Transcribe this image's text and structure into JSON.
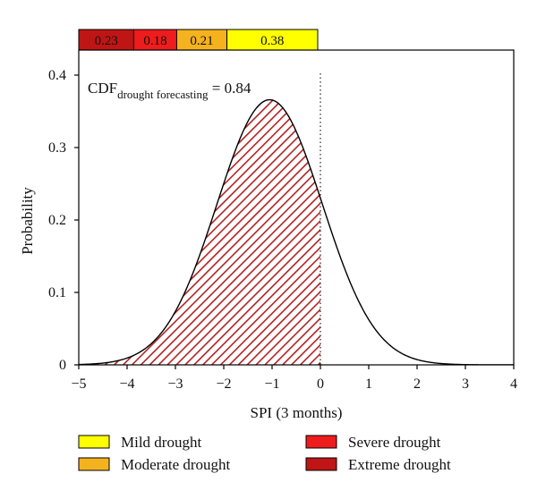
{
  "chart_data": {
    "type": "area",
    "xlabel": "SPI (3 months)",
    "ylabel": "Probability",
    "xlim": [
      -5,
      4
    ],
    "ylim": [
      0,
      0.4
    ],
    "xticks": [
      -5,
      -4,
      -3,
      -2,
      -1,
      0,
      1,
      2,
      3,
      4
    ],
    "xtick_labels": [
      "−5",
      "−4",
      "−3",
      "−2",
      "−1",
      "0",
      "1",
      "2",
      "3",
      "4"
    ],
    "yticks": [
      0,
      0.1,
      0.2,
      0.3,
      0.4
    ],
    "ytick_labels": [
      "0",
      "0.1",
      "0.2",
      "0.3",
      "0.4"
    ],
    "grid": false,
    "distribution": {
      "kind": "normal",
      "mean": -1.05,
      "sd": 1.09
    },
    "shaded_region": {
      "from": -5,
      "to": 0,
      "pattern": "diagonal-hatch",
      "color": "#b22222"
    },
    "threshold_line": {
      "x": 0,
      "style": "dotted"
    },
    "annotation": {
      "main": "CDF",
      "subscript": "drought forecasting",
      "suffix": " = 0.84"
    },
    "probability_bar": [
      {
        "category": "Extreme drought",
        "label": "0.23",
        "value": 0.23,
        "color": "#bf1515"
      },
      {
        "category": "Severe drought",
        "label": "0.18",
        "value": 0.18,
        "color": "#ee1c1c"
      },
      {
        "category": "Moderate drought",
        "label": "0.21",
        "value": 0.21,
        "color": "#f5b21f"
      },
      {
        "category": "Mild drought",
        "label": "0.38",
        "value": 0.38,
        "color": "#ffff00"
      }
    ],
    "legend": {
      "placement": "bottom",
      "entries": [
        {
          "label": "Mild drought",
          "color": "#ffff00"
        },
        {
          "label": "Severe drought",
          "color": "#ee1c1c"
        },
        {
          "label": "Moderate drought",
          "color": "#f5b21f"
        },
        {
          "label": "Extreme drought",
          "color": "#bf1515"
        }
      ]
    }
  }
}
